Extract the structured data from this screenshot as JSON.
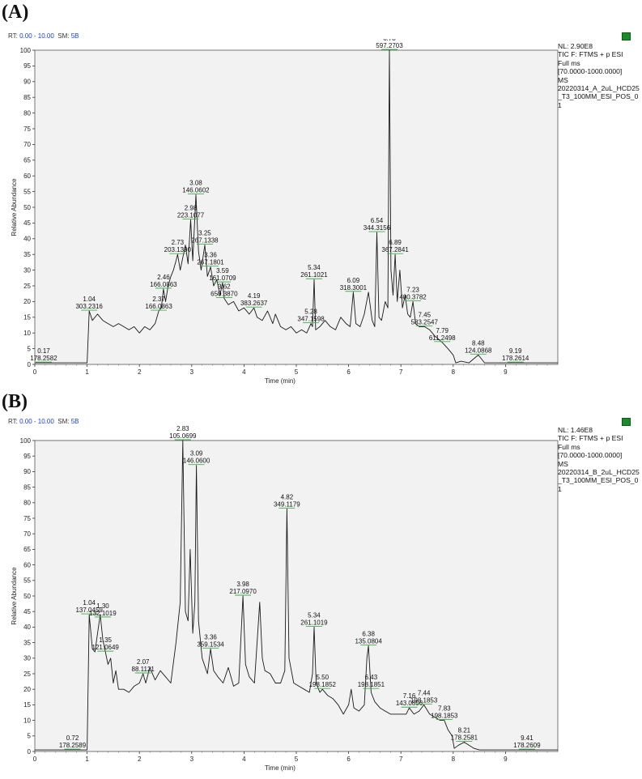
{
  "chart_data": [
    {
      "type": "line",
      "panel_label": "(A)",
      "rt_prefix": "RT:",
      "rt_range": "0.00 - 10.00",
      "sm_prefix": "SM:",
      "sm": "5B",
      "nl": "NL: 2.90E8",
      "info": [
        "TIC F: FTMS + p ESI",
        "Full ms",
        "[70.0000-1000.0000]",
        "MS",
        "20220314_A_2uL_HCD25_T3_100MM_ESI_POS_01"
      ],
      "xlabel": "Time (min)",
      "ylabel": "Relative Abundance",
      "xlim": [
        0,
        10
      ],
      "ylim": [
        0,
        100
      ],
      "x_ticks": [
        0,
        1,
        2,
        3,
        4,
        5,
        6,
        7,
        8,
        9
      ],
      "y_ticks": [
        0,
        5,
        10,
        15,
        20,
        25,
        30,
        35,
        40,
        45,
        50,
        55,
        60,
        65,
        70,
        75,
        80,
        85,
        90,
        95,
        100
      ],
      "annotations": [
        {
          "rt": "0.17",
          "mz": "178.2582",
          "x": 0.17,
          "y": 0.5
        },
        {
          "rt": "1.04",
          "mz": "303.2316",
          "x": 1.04,
          "y": 17
        },
        {
          "rt": "2.37",
          "mz": "166.0863",
          "x": 2.37,
          "y": 17
        },
        {
          "rt": "2.46",
          "mz": "166.0863",
          "x": 2.46,
          "y": 24
        },
        {
          "rt": "2.73",
          "mz": "203.1390",
          "x": 2.73,
          "y": 35
        },
        {
          "rt": "2.98",
          "mz": "223.1077",
          "x": 2.98,
          "y": 46
        },
        {
          "rt": "3.08",
          "mz": "146.0602",
          "x": 3.08,
          "y": 54
        },
        {
          "rt": "3.25",
          "mz": "267.1338",
          "x": 3.25,
          "y": 38
        },
        {
          "rt": "3.36",
          "mz": "267.1801",
          "x": 3.36,
          "y": 31
        },
        {
          "rt": "3.59",
          "mz": "161.0709",
          "x": 3.59,
          "y": 26
        },
        {
          "rt": "3.62",
          "mz": "650.3870",
          "x": 3.62,
          "y": 21
        },
        {
          "rt": "4.19",
          "mz": "383.2637",
          "x": 4.19,
          "y": 18
        },
        {
          "rt": "5.28",
          "mz": "347.1598",
          "x": 5.28,
          "y": 13
        },
        {
          "rt": "5.34",
          "mz": "261.1021",
          "x": 5.34,
          "y": 27
        },
        {
          "rt": "6.09",
          "mz": "318.3001",
          "x": 6.09,
          "y": 23
        },
        {
          "rt": "6.54",
          "mz": "344.3156",
          "x": 6.54,
          "y": 42
        },
        {
          "rt": "6.78",
          "mz": "597.2703",
          "x": 6.78,
          "y": 100
        },
        {
          "rt": "6.89",
          "mz": "367.2841",
          "x": 6.89,
          "y": 35
        },
        {
          "rt": "7.23",
          "mz": "400.3782",
          "x": 7.23,
          "y": 20
        },
        {
          "rt": "7.45",
          "mz": "583.2547",
          "x": 7.45,
          "y": 12
        },
        {
          "rt": "7.79",
          "mz": "611.2498",
          "x": 7.79,
          "y": 7
        },
        {
          "rt": "8.48",
          "mz": "124.0868",
          "x": 8.48,
          "y": 3
        },
        {
          "rt": "9.19",
          "mz": "178.2614",
          "x": 9.19,
          "y": 0.5
        }
      ],
      "series": [
        {
          "x": [
            0,
            1.0,
            1.04,
            1.1,
            1.2,
            1.3,
            1.4,
            1.5,
            1.6,
            1.7,
            1.8,
            1.9,
            2.0,
            2.1,
            2.2,
            2.3,
            2.37,
            2.42,
            2.46,
            2.5,
            2.55,
            2.6,
            2.65,
            2.7,
            2.73,
            2.78,
            2.83,
            2.88,
            2.93,
            2.98,
            3.02,
            3.08,
            3.13,
            3.18,
            3.25,
            3.3,
            3.36,
            3.42,
            3.48,
            3.54,
            3.59,
            3.62,
            3.7,
            3.8,
            3.9,
            4.0,
            4.1,
            4.19,
            4.25,
            4.35,
            4.45,
            4.55,
            4.6,
            4.7,
            4.8,
            4.9,
            5.0,
            5.1,
            5.2,
            5.28,
            5.31,
            5.34,
            5.37,
            5.45,
            5.55,
            5.65,
            5.75,
            5.85,
            5.95,
            6.03,
            6.09,
            6.14,
            6.22,
            6.3,
            6.38,
            6.45,
            6.5,
            6.54,
            6.58,
            6.63,
            6.7,
            6.75,
            6.78,
            6.81,
            6.85,
            6.89,
            6.93,
            6.98,
            7.03,
            7.08,
            7.13,
            7.18,
            7.23,
            7.28,
            7.35,
            7.45,
            7.55,
            7.65,
            7.79,
            7.9,
            8.0,
            8.05,
            8.15,
            8.3,
            8.48,
            8.6,
            8.8,
            9.0,
            9.19,
            9.5,
            10.0
          ],
          "y": [
            0.5,
            0.5,
            17,
            14,
            16,
            14,
            13,
            12,
            13,
            12,
            11,
            12,
            10,
            12,
            11,
            13,
            17,
            18,
            24,
            20,
            25,
            28,
            30,
            33,
            35,
            30,
            34,
            38,
            32,
            46,
            33,
            54,
            36,
            30,
            38,
            28,
            31,
            25,
            27,
            22,
            26,
            21,
            19,
            20,
            17,
            18,
            16,
            18,
            15,
            14,
            17,
            13,
            16,
            12,
            11,
            12,
            10,
            11,
            10,
            13,
            12,
            27,
            11,
            12,
            14,
            12,
            11,
            15,
            13,
            12,
            23,
            13,
            12,
            16,
            23,
            14,
            12,
            42,
            15,
            14,
            20,
            18,
            100,
            30,
            22,
            35,
            20,
            30,
            18,
            22,
            16,
            15,
            20,
            13,
            12,
            12,
            11,
            9,
            7,
            5,
            3,
            0.5,
            1,
            0.5,
            3,
            0.5,
            0.5,
            0.5,
            0.5,
            0.5,
            0.5
          ]
        }
      ]
    },
    {
      "type": "line",
      "panel_label": "(B)",
      "rt_prefix": "RT:",
      "rt_range": "0.00 - 10.00",
      "sm_prefix": "SM:",
      "sm": "5B",
      "nl": "NL: 1.46E8",
      "info": [
        "TIC F: FTMS + p ESI",
        "Full ms",
        "[70.0000-1000.0000]",
        "MS",
        "20220314_B_2uL_HCD25_T3_100MM_ESI_POS_01"
      ],
      "xlabel": "Time (min)",
      "ylabel": "Relative Abundance",
      "xlim": [
        0,
        10
      ],
      "ylim": [
        0,
        100
      ],
      "x_ticks": [
        0,
        1,
        2,
        3,
        4,
        5,
        6,
        7,
        8,
        9
      ],
      "y_ticks": [
        0,
        5,
        10,
        15,
        20,
        25,
        30,
        35,
        40,
        45,
        50,
        55,
        60,
        65,
        70,
        75,
        80,
        85,
        90,
        95,
        100
      ],
      "annotations": [
        {
          "rt": "0.72",
          "mz": "178.2589",
          "x": 0.72,
          "y": 0.5
        },
        {
          "rt": "1.04",
          "mz": "137.0459",
          "x": 1.04,
          "y": 44
        },
        {
          "rt": "1.30",
          "mz": "132.1019",
          "x": 1.3,
          "y": 43
        },
        {
          "rt": "1.35",
          "mz": "121.0649",
          "x": 1.35,
          "y": 32
        },
        {
          "rt": "2.07",
          "mz": "88.1121",
          "x": 2.07,
          "y": 25
        },
        {
          "rt": "2.83",
          "mz": "105.0699",
          "x": 2.83,
          "y": 100
        },
        {
          "rt": "3.09",
          "mz": "146.0600",
          "x": 3.09,
          "y": 92
        },
        {
          "rt": "3.36",
          "mz": "359.1534",
          "x": 3.36,
          "y": 33
        },
        {
          "rt": "3.98",
          "mz": "217.0970",
          "x": 3.98,
          "y": 50
        },
        {
          "rt": "4.82",
          "mz": "349.1179",
          "x": 4.82,
          "y": 78
        },
        {
          "rt": "5.34",
          "mz": "261.1019",
          "x": 5.34,
          "y": 40
        },
        {
          "rt": "5.50",
          "mz": "198.1852",
          "x": 5.5,
          "y": 20
        },
        {
          "rt": "6.38",
          "mz": "135.0804",
          "x": 6.38,
          "y": 34
        },
        {
          "rt": "6.43",
          "mz": "198.1851",
          "x": 6.43,
          "y": 20
        },
        {
          "rt": "7.16",
          "mz": "143.0856",
          "x": 7.16,
          "y": 14
        },
        {
          "rt": "7.44",
          "mz": "198.1853",
          "x": 7.44,
          "y": 15
        },
        {
          "rt": "7.83",
          "mz": "198.1853",
          "x": 7.83,
          "y": 10
        },
        {
          "rt": "8.21",
          "mz": "178.2581",
          "x": 8.21,
          "y": 3
        },
        {
          "rt": "9.41",
          "mz": "178.2609",
          "x": 9.41,
          "y": 0.5
        }
      ],
      "series": [
        {
          "x": [
            0,
            0.72,
            1.0,
            1.04,
            1.1,
            1.15,
            1.2,
            1.25,
            1.3,
            1.35,
            1.4,
            1.45,
            1.5,
            1.55,
            1.6,
            1.7,
            1.8,
            1.9,
            2.0,
            2.07,
            2.12,
            2.2,
            2.3,
            2.4,
            2.5,
            2.6,
            2.7,
            2.78,
            2.83,
            2.88,
            2.93,
            2.97,
            3.02,
            3.06,
            3.09,
            3.13,
            3.2,
            3.3,
            3.36,
            3.42,
            3.5,
            3.6,
            3.7,
            3.8,
            3.9,
            3.98,
            4.03,
            4.1,
            4.2,
            4.3,
            4.35,
            4.4,
            4.5,
            4.6,
            4.7,
            4.78,
            4.82,
            4.86,
            4.95,
            5.05,
            5.15,
            5.25,
            5.31,
            5.34,
            5.38,
            5.45,
            5.5,
            5.6,
            5.7,
            5.8,
            5.9,
            6.0,
            6.05,
            6.1,
            6.2,
            6.3,
            6.35,
            6.38,
            6.43,
            6.5,
            6.6,
            6.7,
            6.8,
            6.9,
            7.0,
            7.1,
            7.16,
            7.25,
            7.35,
            7.44,
            7.55,
            7.65,
            7.75,
            7.83,
            7.9,
            7.98,
            8.02,
            8.1,
            8.21,
            8.3,
            8.4,
            8.5,
            8.7,
            9.0,
            9.41,
            9.7,
            10.0
          ],
          "y": [
            0.5,
            0.5,
            0.5,
            44,
            33,
            32,
            38,
            44,
            36,
            32,
            28,
            30,
            22,
            26,
            20,
            20,
            19,
            21,
            22,
            25,
            22,
            27,
            23,
            26,
            24,
            22,
            35,
            48,
            100,
            45,
            42,
            65,
            38,
            48,
            92,
            42,
            30,
            25,
            33,
            26,
            24,
            22,
            27,
            21,
            22,
            50,
            28,
            24,
            22,
            48,
            30,
            26,
            25,
            22,
            22,
            26,
            78,
            30,
            22,
            21,
            20,
            19,
            25,
            40,
            22,
            19,
            20,
            18,
            17,
            15,
            12,
            15,
            20,
            14,
            13,
            15,
            30,
            34,
            19,
            16,
            14,
            13,
            12,
            12,
            12,
            12,
            14,
            12,
            13,
            15,
            12,
            11,
            10,
            10,
            7,
            5,
            1,
            2,
            3,
            2,
            1,
            0.5,
            0.5,
            0.5,
            0.5,
            0.5,
            0.5
          ]
        }
      ]
    }
  ]
}
